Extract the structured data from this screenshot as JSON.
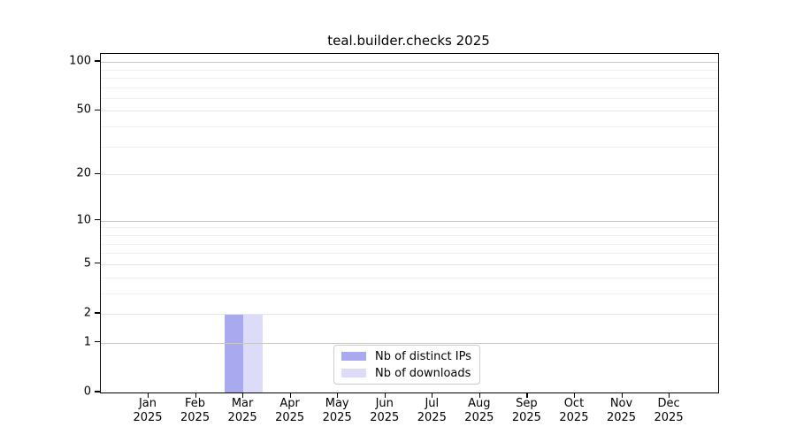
{
  "chart_data": {
    "type": "bar",
    "title": "teal.builder.checks 2025",
    "categories": [
      "Jan 2025",
      "Feb 2025",
      "Mar 2025",
      "Apr 2025",
      "May 2025",
      "Jun 2025",
      "Jul 2025",
      "Aug 2025",
      "Sep 2025",
      "Oct 2025",
      "Nov 2025",
      "Dec 2025"
    ],
    "series": [
      {
        "name": "Nb of distinct IPs",
        "color": "#a9a9f0",
        "values": [
          0,
          0,
          2,
          0,
          0,
          0,
          0,
          0,
          0,
          0,
          0,
          0
        ]
      },
      {
        "name": "Nb of downloads",
        "color": "#dcdcf8",
        "values": [
          0,
          0,
          2,
          0,
          0,
          0,
          0,
          0,
          0,
          0,
          0,
          0
        ]
      }
    ],
    "xlabel": "",
    "ylabel": "",
    "y_scale": "log1p",
    "ylim": [
      0,
      112
    ],
    "y_axis_ticks": [
      100,
      50,
      20,
      10,
      5,
      2,
      1,
      0
    ],
    "y_minor_gridlines": [
      3,
      4,
      6,
      7,
      8,
      9,
      30,
      40,
      60,
      70,
      80,
      90
    ],
    "grid": true,
    "legend_position": "lower center"
  },
  "colors": {
    "bar_distinct_ips": "#a9a9f0",
    "bar_downloads": "#dcdcf8",
    "grid_major": "#c8c8c8",
    "grid_mid": "#e4e4e4",
    "grid_minor": "#f0f0f0",
    "frame": "#000000",
    "legend_border": "#cccccc",
    "background": "#ffffff"
  }
}
